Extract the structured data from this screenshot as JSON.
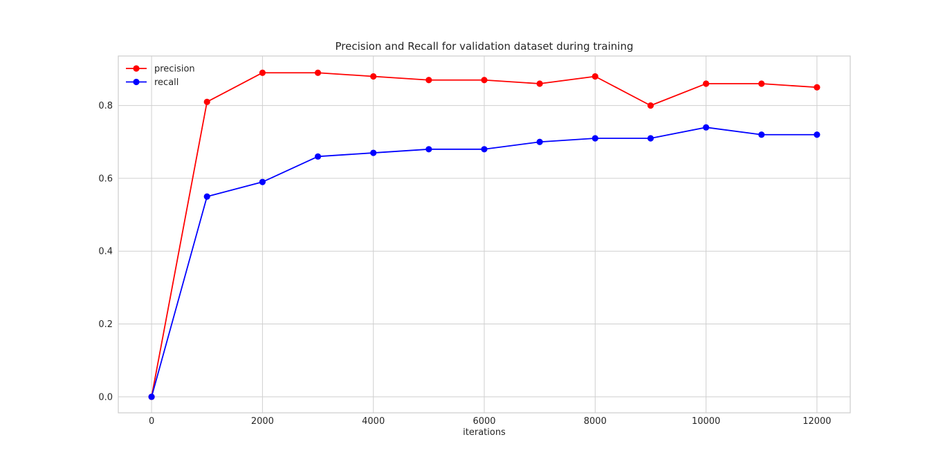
{
  "chart_data": {
    "type": "line",
    "title": "Precision and Recall for validation dataset during training",
    "xlabel": "iterations",
    "ylabel": "",
    "x": [
      0,
      1000,
      2000,
      3000,
      4000,
      5000,
      6000,
      7000,
      8000,
      9000,
      10000,
      11000,
      12000
    ],
    "series": [
      {
        "name": "precision",
        "color": "#ff0000",
        "marker": "circle",
        "values": [
          0.0,
          0.81,
          0.89,
          0.89,
          0.88,
          0.87,
          0.87,
          0.86,
          0.88,
          0.8,
          0.86,
          0.86,
          0.85
        ]
      },
      {
        "name": "recall",
        "color": "#0000ff",
        "marker": "circle",
        "values": [
          0.0,
          0.55,
          0.59,
          0.66,
          0.67,
          0.68,
          0.68,
          0.7,
          0.71,
          0.71,
          0.74,
          0.72,
          0.72
        ]
      }
    ],
    "xlim": [
      -600,
      12600
    ],
    "ylim": [
      -0.044,
      0.936
    ],
    "xticks": [
      0,
      2000,
      4000,
      6000,
      8000,
      10000,
      12000
    ],
    "xtick_labels": [
      "0",
      "2000",
      "4000",
      "6000",
      "8000",
      "10000",
      "12000"
    ],
    "yticks": [
      0.0,
      0.2,
      0.4,
      0.6,
      0.8
    ],
    "ytick_labels": [
      "0.0",
      "0.2",
      "0.4",
      "0.6",
      "0.8"
    ],
    "grid": true,
    "legend_position": "top-left"
  }
}
